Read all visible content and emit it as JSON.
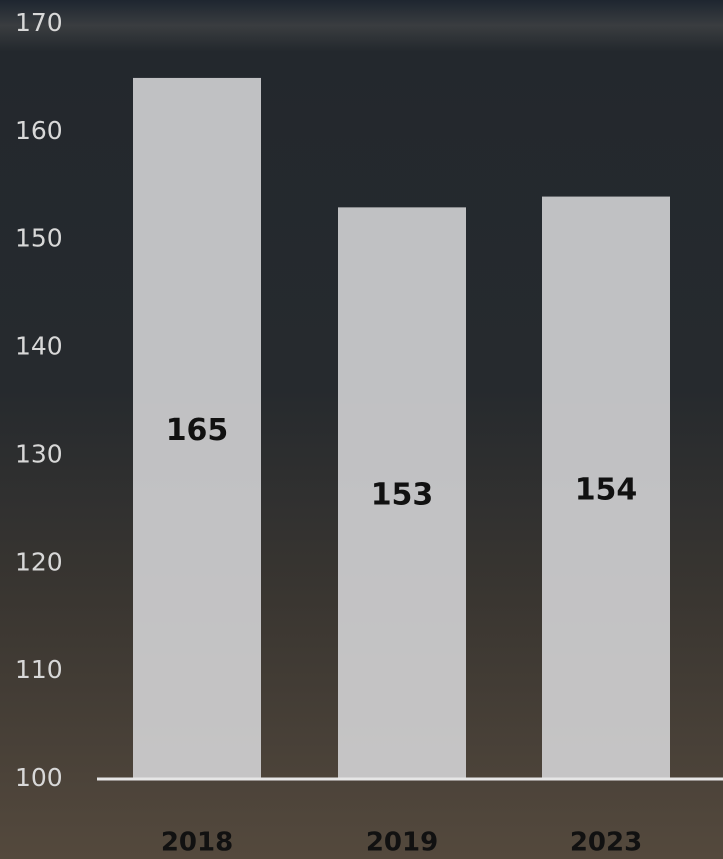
{
  "chart_data": {
    "type": "bar",
    "categories": [
      "2018",
      "2019",
      "2023"
    ],
    "values": [
      165,
      153,
      154
    ],
    "color": "#d6d6d8",
    "ylim": [
      100,
      170
    ],
    "yticks": [
      100,
      110,
      120,
      130,
      140,
      150,
      160,
      170
    ],
    "grid": false
  }
}
